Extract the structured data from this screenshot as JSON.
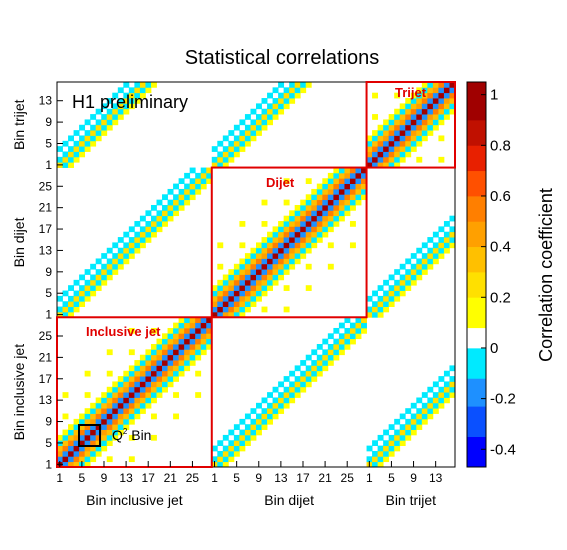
{
  "chart_data": {
    "type": "heatmap",
    "title": "Statistical correlations",
    "annotation": "H1 preliminary",
    "q2_label": "Q",
    "q2_sup": "2",
    "q2_suffix": " Bin",
    "colorbar": {
      "title": "Correlation coefficient",
      "ticks": [
        "1",
        "0.8",
        "0.6",
        "0.4",
        "0.2",
        "0",
        "-0.2",
        "-0.4"
      ],
      "tick_values": [
        1,
        0.8,
        0.6,
        0.4,
        0.2,
        0,
        -0.2,
        -0.4
      ],
      "range": [
        -0.47,
        1.05
      ],
      "colors": [
        "#0000ff",
        "#0a50ff",
        "#1e90ff",
        "#00eaff",
        "#ffffff",
        "#ffff00",
        "#ffe000",
        "#ffc000",
        "#ffa000",
        "#ff7f00",
        "#ff5000",
        "#e82000",
        "#c01000",
        "#a00000"
      ],
      "thresholds": [
        -0.47,
        -0.35,
        -0.23,
        -0.12,
        0.0,
        0.08,
        0.2,
        0.3,
        0.4,
        0.5,
        0.6,
        0.7,
        0.8,
        0.9,
        1.05
      ]
    },
    "blocks": [
      {
        "name": "Inclusive jet",
        "bins": 28,
        "tick_labels": [
          "1",
          "5",
          "9",
          "13",
          "17",
          "21",
          "25"
        ],
        "tick_bins": [
          1,
          5,
          9,
          13,
          17,
          21,
          25
        ]
      },
      {
        "name": "Dijet",
        "bins": 28,
        "tick_labels": [
          "1",
          "5",
          "9",
          "13",
          "17",
          "21",
          "25"
        ],
        "tick_bins": [
          1,
          5,
          9,
          13,
          17,
          21,
          25
        ]
      },
      {
        "name": "Trijet",
        "bins": 16,
        "tick_labels": [
          "1",
          "5",
          "9",
          "13"
        ],
        "tick_bins": [
          1,
          5,
          9,
          13
        ]
      }
    ],
    "xlabels": [
      "Bin inclusive jet",
      "Bin dijet",
      "Bin trijet"
    ],
    "ylabels": [
      "Bin inclusive jet",
      "Bin dijet",
      "Bin trijet"
    ],
    "box_labels": [
      "Inclusive jet",
      "Dijet",
      "Trijet"
    ],
    "correlation_pattern": {
      "diagonal": 1.0,
      "near_diagonal": [
        -0.15,
        -0.1
      ],
      "q2_group_size": 4,
      "within_group_offdiag": 0.25,
      "cross_block_same_bin": 0.15,
      "cross_block_neighbor": -0.12
    },
    "grid": false,
    "legend": "right"
  }
}
